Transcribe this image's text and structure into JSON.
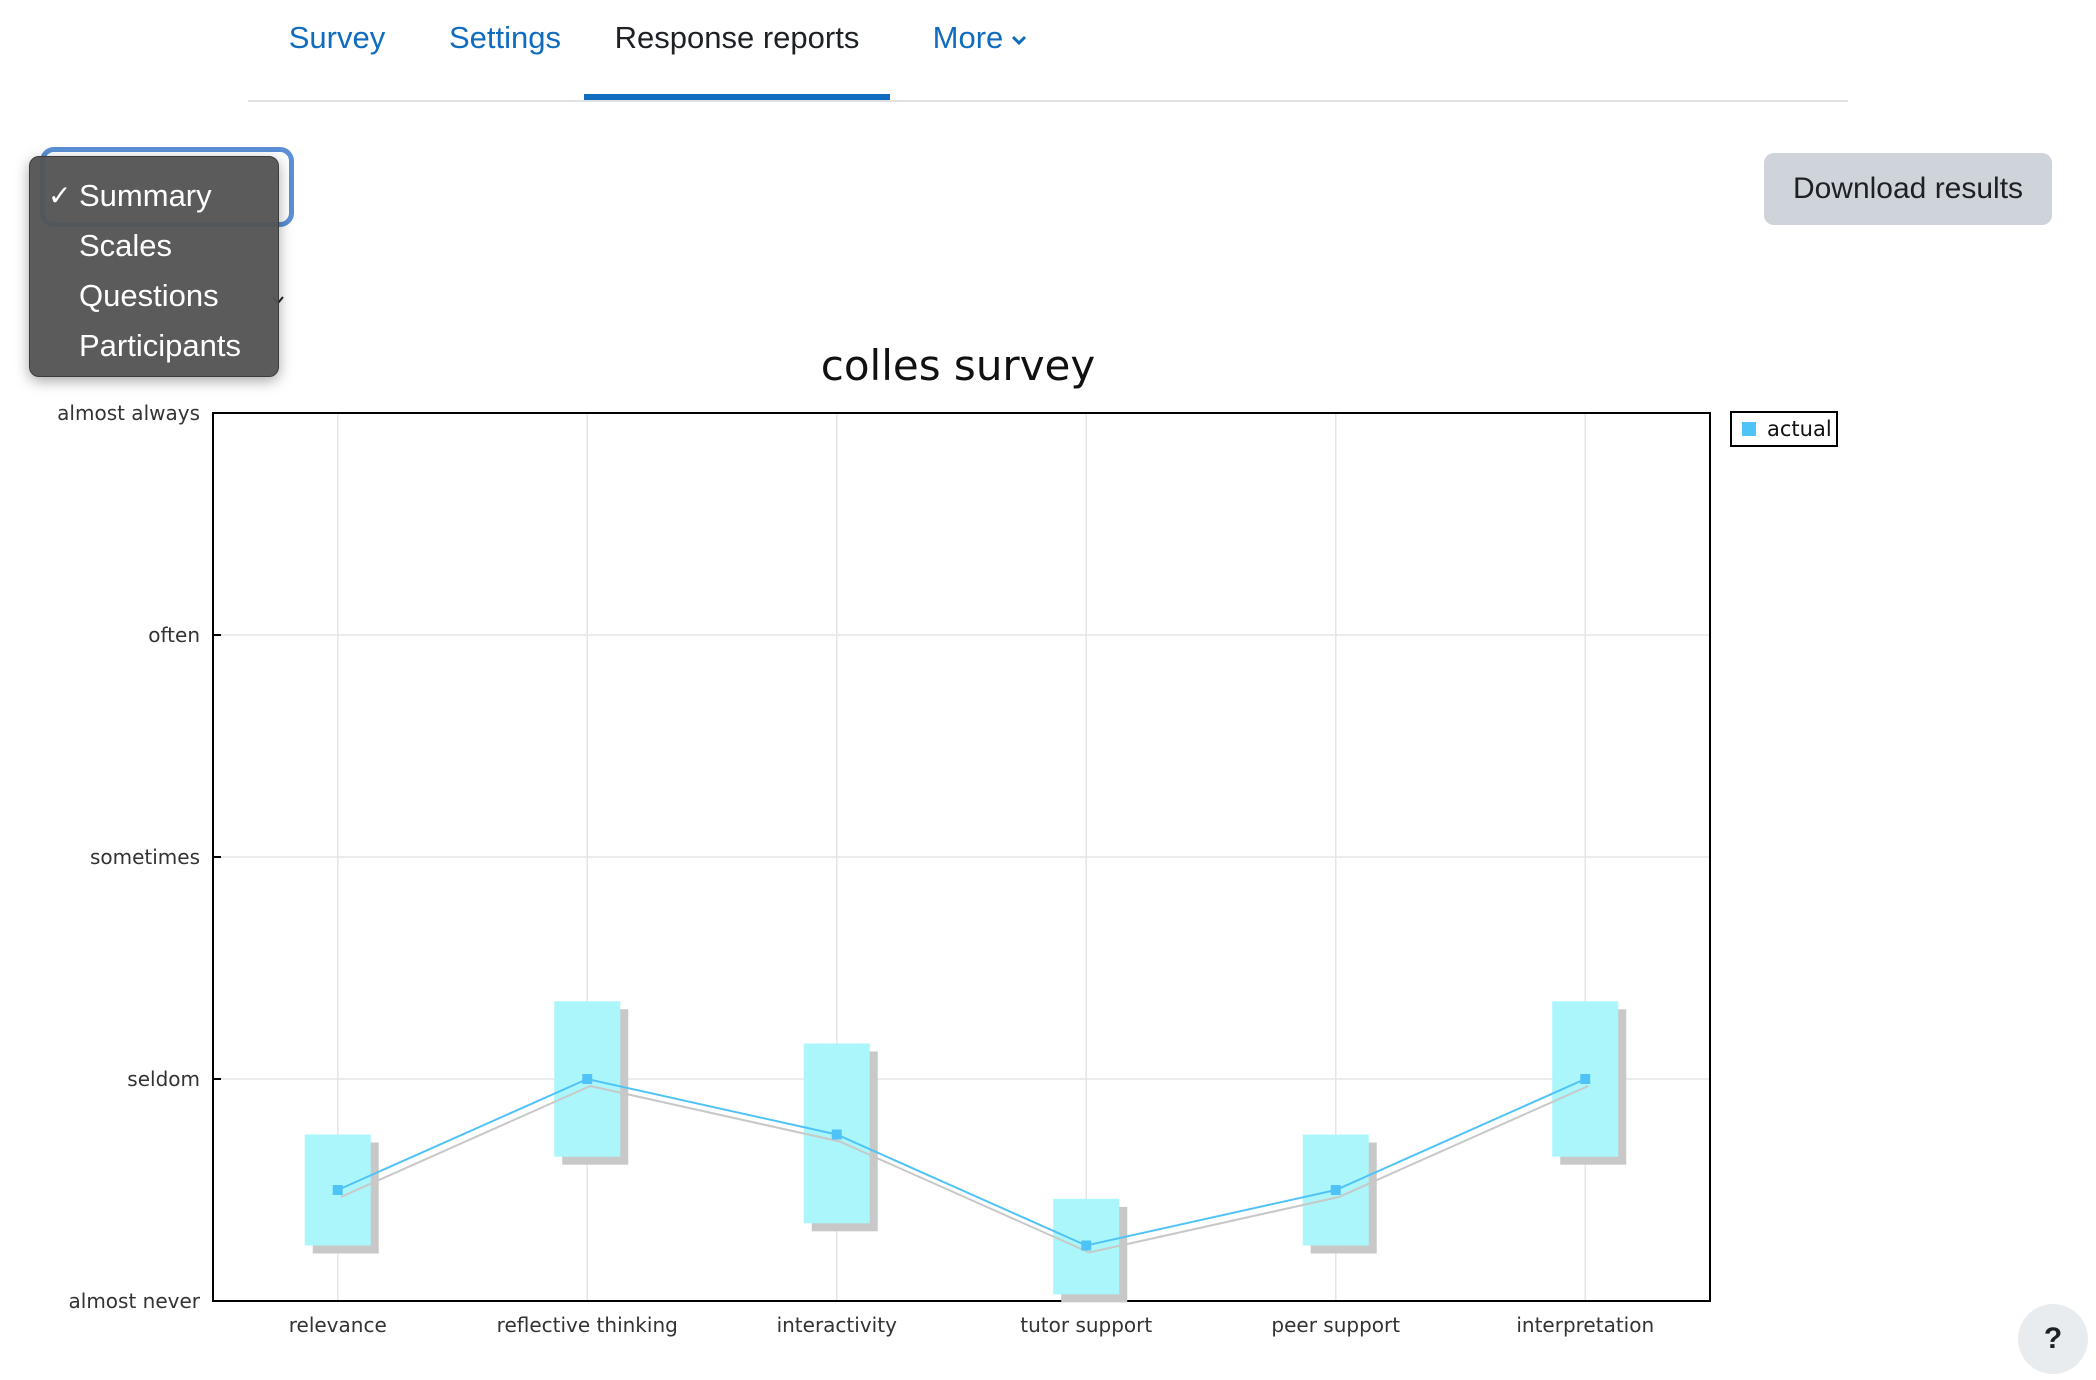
{
  "tabs": [
    {
      "label": "Survey"
    },
    {
      "label": "Settings"
    },
    {
      "label": "Response reports",
      "active": true
    },
    {
      "label": "More",
      "has_menu": true
    }
  ],
  "report_select": {
    "options": [
      "Summary",
      "Scales",
      "Questions",
      "Participants"
    ],
    "selected": "Summary",
    "check_mark": "✓"
  },
  "download_button": {
    "label": "Download results"
  },
  "help_button": {
    "label": "?"
  },
  "chart_data": {
    "type": "line",
    "title": "colles survey",
    "categories": [
      "relevance",
      "reflective thinking",
      "interactivity",
      "tutor support",
      "peer support",
      "interpretation"
    ],
    "y_tick_labels": [
      "almost never",
      "seldom",
      "sometimes",
      "often",
      "almost always"
    ],
    "ylim": [
      1,
      5
    ],
    "series": [
      {
        "name": "actual",
        "color": "#4fc3f7",
        "values": [
          1.5,
          2.0,
          1.75,
          1.25,
          1.5,
          2.0
        ],
        "range_low": [
          1.25,
          1.65,
          1.35,
          1.03,
          1.25,
          1.65
        ],
        "range_high": [
          1.75,
          2.35,
          2.16,
          1.46,
          1.75,
          2.35
        ]
      }
    ],
    "box_color": "#aaf6fb",
    "shadow_color": "#c8c8c8",
    "grid": true,
    "legend": "top-right"
  }
}
